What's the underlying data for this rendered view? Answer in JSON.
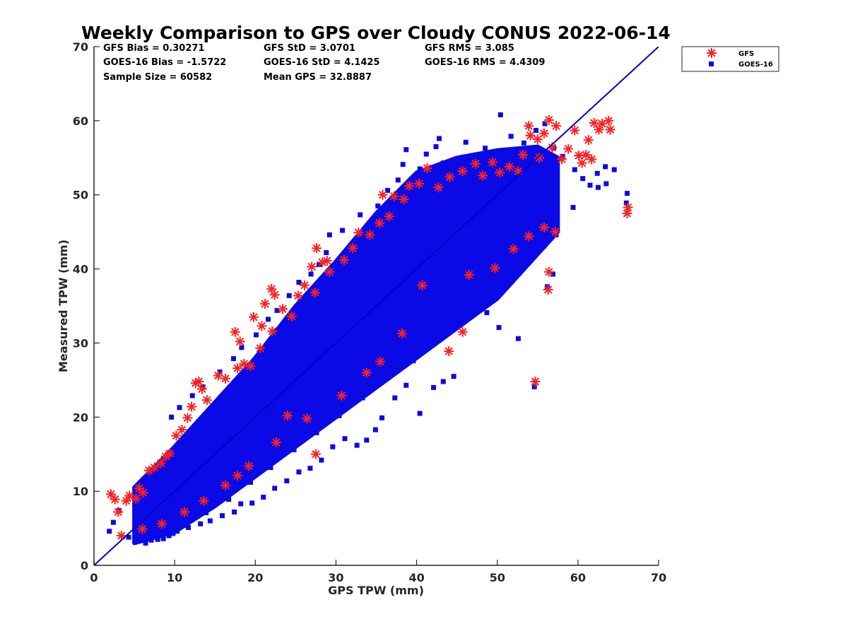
{
  "chart_data": {
    "type": "scatter",
    "title": "Weekly Comparison to GPS over Cloudy CONUS 2022-06-14",
    "xlabel": "GPS TPW (mm)",
    "ylabel": "Measured TPW (mm)",
    "xlim": [
      0,
      70
    ],
    "ylim": [
      0,
      70
    ],
    "xticks": [
      "0",
      "10",
      "20",
      "30",
      "40",
      "50",
      "60",
      "70"
    ],
    "yticks": [
      "0",
      "10",
      "20",
      "30",
      "40",
      "50",
      "60",
      "70"
    ],
    "grid": false,
    "legend_position": "outside-top-right",
    "reference_line": {
      "x": [
        0,
        70
      ],
      "y": [
        0,
        70
      ],
      "color": "#0000cc"
    },
    "stats": [
      [
        "GFS Bias = 0.30271",
        "GFS StD = 3.0701",
        "GFS RMS = 3.085"
      ],
      [
        "GOES-16 Bias = -1.5722",
        "GOES-16 StD = 4.1425",
        "GOES-16 RMS = 4.4309"
      ],
      [
        "Sample Size = 60582",
        "Mean GPS = 32.8887",
        ""
      ]
    ],
    "series": [
      {
        "name": "GFS",
        "marker": "asterisk",
        "color": "#ff1f1f",
        "points": [
          [
            2.1,
            9.6
          ],
          [
            2.6,
            8.9
          ],
          [
            3.0,
            7.2
          ],
          [
            3.4,
            4.0
          ],
          [
            4.0,
            8.7
          ],
          [
            4.4,
            9.4
          ],
          [
            5.2,
            9.0
          ],
          [
            5.6,
            10.4
          ],
          [
            6.1,
            9.8
          ],
          [
            6.8,
            12.8
          ],
          [
            7.5,
            13.2
          ],
          [
            8.3,
            13.8
          ],
          [
            8.9,
            14.7
          ],
          [
            9.4,
            15.1
          ],
          [
            10.2,
            17.5
          ],
          [
            10.9,
            18.3
          ],
          [
            11.6,
            19.9
          ],
          [
            12.1,
            21.4
          ],
          [
            12.6,
            24.6
          ],
          [
            13.0,
            24.8
          ],
          [
            13.4,
            23.8
          ],
          [
            14.0,
            22.3
          ],
          [
            15.4,
            25.6
          ],
          [
            16.3,
            25.2
          ],
          [
            17.8,
            26.6
          ],
          [
            17.5,
            31.5
          ],
          [
            18.1,
            30.2
          ],
          [
            18.6,
            27.2
          ],
          [
            19.4,
            26.9
          ],
          [
            20.6,
            29.3
          ],
          [
            20.8,
            32.3
          ],
          [
            19.8,
            33.5
          ],
          [
            21.2,
            35.3
          ],
          [
            22.0,
            37.3
          ],
          [
            22.4,
            36.5
          ],
          [
            22.1,
            31.6
          ],
          [
            23.4,
            34.6
          ],
          [
            24.5,
            33.6
          ],
          [
            25.3,
            36.4
          ],
          [
            26.1,
            37.8
          ],
          [
            27.0,
            40.3
          ],
          [
            27.4,
            36.8
          ],
          [
            27.6,
            42.8
          ],
          [
            28.3,
            40.9
          ],
          [
            28.9,
            41.1
          ],
          [
            29.2,
            39.6
          ],
          [
            31.0,
            41.2
          ],
          [
            32.1,
            42.8
          ],
          [
            32.8,
            44.9
          ],
          [
            34.2,
            44.6
          ],
          [
            35.4,
            46.2
          ],
          [
            35.8,
            50.0
          ],
          [
            36.6,
            47.1
          ],
          [
            37.2,
            49.8
          ],
          [
            38.4,
            49.4
          ],
          [
            39.1,
            51.2
          ],
          [
            40.3,
            51.5
          ],
          [
            41.3,
            53.6
          ],
          [
            42.7,
            51.0
          ],
          [
            44.1,
            52.4
          ],
          [
            45.7,
            53.2
          ],
          [
            47.3,
            54.2
          ],
          [
            48.2,
            52.6
          ],
          [
            49.4,
            54.4
          ],
          [
            50.3,
            53.0
          ],
          [
            51.5,
            53.8
          ],
          [
            52.6,
            53.2
          ],
          [
            53.2,
            55.4
          ],
          [
            53.9,
            59.3
          ],
          [
            54.1,
            58.0
          ],
          [
            55.0,
            57.5
          ],
          [
            55.8,
            58.3
          ],
          [
            56.4,
            60.1
          ],
          [
            57.3,
            59.3
          ],
          [
            55.2,
            55.0
          ],
          [
            56.8,
            56.4
          ],
          [
            58.0,
            54.8
          ],
          [
            58.8,
            56.2
          ],
          [
            59.6,
            58.7
          ],
          [
            60.1,
            55.3
          ],
          [
            60.5,
            54.3
          ],
          [
            61.0,
            55.4
          ],
          [
            61.3,
            57.4
          ],
          [
            61.7,
            54.8
          ],
          [
            62.0,
            59.7
          ],
          [
            62.6,
            58.8
          ],
          [
            63.0,
            59.6
          ],
          [
            63.8,
            60.0
          ],
          [
            64.0,
            58.8
          ],
          [
            66.2,
            48.3
          ],
          [
            66.1,
            47.5
          ],
          [
            56.4,
            39.6
          ],
          [
            56.3,
            37.2
          ],
          [
            54.7,
            24.8
          ],
          [
            44.0,
            28.9
          ],
          [
            45.7,
            31.5
          ],
          [
            27.5,
            15.0
          ],
          [
            40.7,
            37.8
          ],
          [
            46.5,
            39.2
          ],
          [
            49.7,
            40.1
          ],
          [
            52.0,
            42.7
          ],
          [
            53.9,
            44.4
          ],
          [
            55.8,
            45.6
          ],
          [
            57.2,
            45.0
          ],
          [
            38.2,
            31.3
          ],
          [
            33.8,
            26.0
          ],
          [
            30.7,
            22.9
          ],
          [
            26.4,
            19.8
          ],
          [
            22.6,
            16.6
          ],
          [
            19.2,
            13.4
          ],
          [
            16.3,
            10.8
          ],
          [
            13.6,
            8.7
          ],
          [
            11.2,
            7.2
          ],
          [
            8.4,
            5.6
          ],
          [
            6.0,
            4.9
          ],
          [
            24.0,
            20.2
          ],
          [
            35.5,
            27.5
          ],
          [
            17.8,
            12.1
          ]
        ]
      },
      {
        "name": "GOES-16",
        "marker": "square",
        "color": "#0a0ae6",
        "band": {
          "lower": [
            [
              5,
              3
            ],
            [
              10,
              4.5
            ],
            [
              15,
              8
            ],
            [
              20,
              12
            ],
            [
              25,
              16
            ],
            [
              30,
              20
            ],
            [
              35,
              24
            ],
            [
              40,
              28
            ],
            [
              45,
              32
            ],
            [
              50,
              36
            ],
            [
              55,
              42
            ],
            [
              57.5,
              45
            ]
          ],
          "upper": [
            [
              57.5,
              55
            ],
            [
              55,
              56.5
            ],
            [
              50,
              56
            ],
            [
              45,
              55
            ],
            [
              40,
              53
            ],
            [
              35,
              47.5
            ],
            [
              30,
              41
            ],
            [
              25,
              35
            ],
            [
              20,
              28
            ],
            [
              15,
              22
            ],
            [
              10,
              16
            ],
            [
              5,
              10.5
            ]
          ]
        },
        "points": [
          [
            1.9,
            4.6
          ],
          [
            2.4,
            5.8
          ],
          [
            3.1,
            7.4
          ],
          [
            4.3,
            3.8
          ],
          [
            5.6,
            3.3
          ],
          [
            6.4,
            3.0
          ],
          [
            7.1,
            3.4
          ],
          [
            9.6,
            20.0
          ],
          [
            10.6,
            21.3
          ],
          [
            12.2,
            22.9
          ],
          [
            13.5,
            24.1
          ],
          [
            15.6,
            26.1
          ],
          [
            17.3,
            27.9
          ],
          [
            18.3,
            29.4
          ],
          [
            20.1,
            31.1
          ],
          [
            21.6,
            33.2
          ],
          [
            22.7,
            34.4
          ],
          [
            24.2,
            36.4
          ],
          [
            25.4,
            38.2
          ],
          [
            26.9,
            39.3
          ],
          [
            27.9,
            40.6
          ],
          [
            28.8,
            42.2
          ],
          [
            29.2,
            44.6
          ],
          [
            30.8,
            45.2
          ],
          [
            33.0,
            47.3
          ],
          [
            34.1,
            45.9
          ],
          [
            35.2,
            48.5
          ],
          [
            36.4,
            50.6
          ],
          [
            37.7,
            52.0
          ],
          [
            38.3,
            54.1
          ],
          [
            38.7,
            56.1
          ],
          [
            40.4,
            53.5
          ],
          [
            41.2,
            55.5
          ],
          [
            42.4,
            56.5
          ],
          [
            42.8,
            57.6
          ],
          [
            43.3,
            54.3
          ],
          [
            46.1,
            57.1
          ],
          [
            48.5,
            56.3
          ],
          [
            50.4,
            60.8
          ],
          [
            51.7,
            57.9
          ],
          [
            53.3,
            57.0
          ],
          [
            54.8,
            58.7
          ],
          [
            55.9,
            59.6
          ],
          [
            57.0,
            56.3
          ],
          [
            58.1,
            55.2
          ],
          [
            59.6,
            53.4
          ],
          [
            60.6,
            52.2
          ],
          [
            61.5,
            51.3
          ],
          [
            62.4,
            52.9
          ],
          [
            63.4,
            53.8
          ],
          [
            64.5,
            53.4
          ],
          [
            66.1,
            50.2
          ],
          [
            66.0,
            48.9
          ],
          [
            55.6,
            52.7
          ],
          [
            56.4,
            48.1
          ],
          [
            56.9,
            39.3
          ],
          [
            56.2,
            37.6
          ],
          [
            54.6,
            24.1
          ],
          [
            52.6,
            30.6
          ],
          [
            50.2,
            32.1
          ],
          [
            48.7,
            34.1
          ],
          [
            47.3,
            35.2
          ],
          [
            45.4,
            33.0
          ],
          [
            44.6,
            25.5
          ],
          [
            43.3,
            24.8
          ],
          [
            42.1,
            24.0
          ],
          [
            40.4,
            20.5
          ],
          [
            38.7,
            24.3
          ],
          [
            37.3,
            22.6
          ],
          [
            35.7,
            19.9
          ],
          [
            34.9,
            18.3
          ],
          [
            33.8,
            16.9
          ],
          [
            32.6,
            16.2
          ],
          [
            31.1,
            17.1
          ],
          [
            29.6,
            16.0
          ],
          [
            28.2,
            14.2
          ],
          [
            26.8,
            13.1
          ],
          [
            25.4,
            12.6
          ],
          [
            23.9,
            11.4
          ],
          [
            22.4,
            10.4
          ],
          [
            21.0,
            9.2
          ],
          [
            19.6,
            8.4
          ],
          [
            18.2,
            8.3
          ],
          [
            17.4,
            7.2
          ],
          [
            15.9,
            6.7
          ],
          [
            14.4,
            6.0
          ],
          [
            13.2,
            5.6
          ],
          [
            11.7,
            5.1
          ],
          [
            10.3,
            4.6
          ],
          [
            9.3,
            4.0
          ],
          [
            8.6,
            3.6
          ],
          [
            7.9,
            3.5
          ],
          [
            55.2,
            45.2
          ],
          [
            56.7,
            45.8
          ],
          [
            57.3,
            44.6
          ],
          [
            53.9,
            41.6
          ],
          [
            51.2,
            39.6
          ],
          [
            46.6,
            34.7
          ],
          [
            41.2,
            29.7
          ],
          [
            39.6,
            27.6
          ],
          [
            36.4,
            25.4
          ],
          [
            33.3,
            22.6
          ],
          [
            30.4,
            20.2
          ],
          [
            27.6,
            17.9
          ],
          [
            24.8,
            15.6
          ],
          [
            21.9,
            13.2
          ],
          [
            19.4,
            11.2
          ],
          [
            16.7,
            8.9
          ],
          [
            13.9,
            7.1
          ],
          [
            11.4,
            5.4
          ],
          [
            9.8,
            4.3
          ],
          [
            24.2,
            23.9
          ],
          [
            31.6,
            33.3
          ],
          [
            27.3,
            30.5
          ],
          [
            43.3,
            49.8
          ],
          [
            47.6,
            52.8
          ],
          [
            52.3,
            55.5
          ],
          [
            35.8,
            41.2
          ],
          [
            18.2,
            21.1
          ],
          [
            14.4,
            17.5
          ],
          [
            7.7,
            8.4
          ],
          [
            62.5,
            51.0
          ],
          [
            63.5,
            51.5
          ],
          [
            59.4,
            48.3
          ],
          [
            55.8,
            43.1
          ],
          [
            54.7,
            50.6
          ]
        ]
      }
    ]
  }
}
